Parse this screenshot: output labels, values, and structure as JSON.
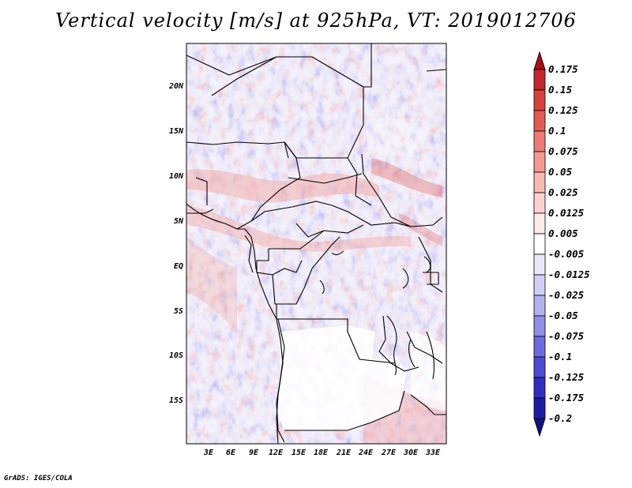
{
  "title": "Vertical velocity [m/s] at 925hPa, VT: 2019012706",
  "footer": "GrADS: IGES/COLA",
  "map": {
    "lat_labels": [
      "20N",
      "15N",
      "10N",
      "5N",
      "EQ",
      "5S",
      "10S",
      "15S"
    ],
    "lon_labels": [
      "3E",
      "6E",
      "9E",
      "12E",
      "15E",
      "18E",
      "21E",
      "24E",
      "27E",
      "30E",
      "33E"
    ],
    "field": "vertical velocity",
    "level": "925hPa",
    "valid_time": "2019012706"
  },
  "colorbar": {
    "labels": [
      "0.175",
      "0.15",
      "0.125",
      "0.1",
      "0.075",
      "0.05",
      "0.025",
      "0.0125",
      "0.005",
      "-0.005",
      "-0.0125",
      "-0.025",
      "-0.05",
      "-0.075",
      "-0.1",
      "-0.125",
      "-0.175",
      "-0.2"
    ],
    "colors": [
      "#a50f15",
      "#c1272d",
      "#d7423f",
      "#e35b57",
      "#ee7b76",
      "#f49a94",
      "#f8b8b2",
      "#fbd3ce",
      "#fdebe8",
      "#ffffff",
      "#e9e9fb",
      "#d0d0f6",
      "#b2b2f0",
      "#8f8fe8",
      "#6c6ce0",
      "#4b4bd3",
      "#2f2fbf",
      "#1c1ca3",
      "#12127f"
    ]
  }
}
